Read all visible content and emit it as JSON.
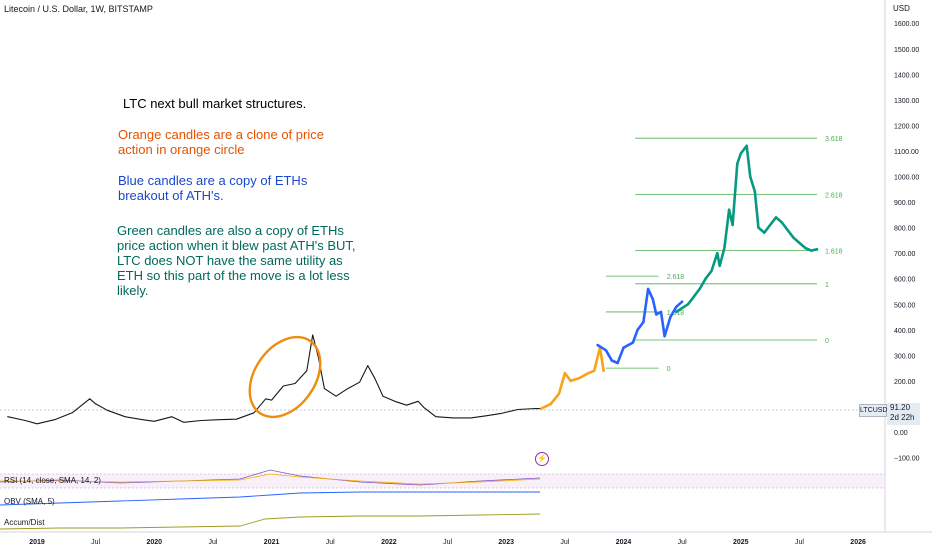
{
  "header": {
    "symbol_title": "Litecoin / U.S. Dollar, 1W, BITSTAMP",
    "currency": "USD"
  },
  "annotations": {
    "title": "LTC next bull market structures.",
    "orange": "Orange candles are a clone of price action in orange circle",
    "blue": "Blue candles are a copy of ETHs breakout of ATH's.",
    "green": "Green candles are also a copy of ETHs price action when it blew past ATH's BUT, LTC does NOT have the same utility as ETH so this part of the move is a lot less likely."
  },
  "price_axis": {
    "ticks": [
      1600,
      1500,
      1400,
      1300,
      1200,
      1100,
      1000,
      900,
      800,
      700,
      600,
      500,
      400,
      300,
      200,
      100,
      0,
      -100
    ],
    "tick_labels": [
      "1600.00",
      "1500.00",
      "1400.00",
      "1300.00",
      "1200.00",
      "1100.00",
      "1000.00",
      "900.00",
      "800.00",
      "700.00",
      "600.00",
      "500.00",
      "400.00",
      "300.00",
      "200.00",
      "100.00",
      "0.00",
      "−100.00"
    ]
  },
  "time_axis": {
    "labels": [
      {
        "text": "2019",
        "t": 2019.0
      },
      {
        "text": "Jul",
        "t": 2019.5
      },
      {
        "text": "2020",
        "t": 2020.0
      },
      {
        "text": "Jul",
        "t": 2020.5
      },
      {
        "text": "2021",
        "t": 2021.0
      },
      {
        "text": "Jul",
        "t": 2021.5
      },
      {
        "text": "2022",
        "t": 2022.0
      },
      {
        "text": "Jul",
        "t": 2022.5
      },
      {
        "text": "2023",
        "t": 2023.0
      },
      {
        "text": "Jul",
        "t": 2023.5
      },
      {
        "text": "2024",
        "t": 2024.0
      },
      {
        "text": "Jul",
        "t": 2024.5
      },
      {
        "text": "2025",
        "t": 2025.0
      },
      {
        "text": "Jul",
        "t": 2025.5
      },
      {
        "text": "2026",
        "t": 2026.0
      }
    ]
  },
  "badges": {
    "symbol": "LTCUSD",
    "last_price": "91.20",
    "countdown": "2d 22h"
  },
  "indicators": {
    "rsi_label": "RSI (14, close, SMA, 14, 2)",
    "obv_label": "OBV (SMA, 5)",
    "accum_label": "Accum/Dist"
  },
  "colors": {
    "historical": "#131722",
    "orange": "#f7a21b",
    "blue": "#2962ff",
    "green": "#089981",
    "fib": "#4caf50",
    "circle": "#ef8c0e"
  },
  "chart_data": {
    "type": "line",
    "title": "Litecoin / U.S. Dollar, 1W, BITSTAMP",
    "xlabel": "",
    "ylabel": "USD",
    "ylim": [
      -130,
      1650
    ],
    "series": [
      {
        "name": "",
        "color_key": "historical",
        "points": [
          [
            2018.75,
            60
          ],
          [
            2018.9,
            45
          ],
          [
            2019.0,
            32
          ],
          [
            2019.15,
            48
          ],
          [
            2019.3,
            75
          ],
          [
            2019.45,
            130
          ],
          [
            2019.5,
            110
          ],
          [
            2019.6,
            85
          ],
          [
            2019.75,
            60
          ],
          [
            2019.9,
            48
          ],
          [
            2020.0,
            42
          ],
          [
            2020.15,
            60
          ],
          [
            2020.25,
            38
          ],
          [
            2020.4,
            45
          ],
          [
            2020.55,
            48
          ],
          [
            2020.7,
            50
          ],
          [
            2020.85,
            75
          ],
          [
            2020.95,
            130
          ],
          [
            2021.0,
            125
          ],
          [
            2021.1,
            180
          ],
          [
            2021.2,
            190
          ],
          [
            2021.3,
            240
          ],
          [
            2021.35,
            380
          ],
          [
            2021.4,
            290
          ],
          [
            2021.45,
            170
          ],
          [
            2021.55,
            140
          ],
          [
            2021.65,
            170
          ],
          [
            2021.75,
            195
          ],
          [
            2021.82,
            260
          ],
          [
            2021.88,
            210
          ],
          [
            2021.95,
            140
          ],
          [
            2022.05,
            120
          ],
          [
            2022.15,
            105
          ],
          [
            2022.25,
            120
          ],
          [
            2022.3,
            95
          ],
          [
            2022.4,
            60
          ],
          [
            2022.55,
            55
          ],
          [
            2022.7,
            55
          ],
          [
            2022.85,
            65
          ],
          [
            2022.95,
            72
          ],
          [
            2023.1,
            88
          ],
          [
            2023.25,
            92
          ],
          [
            2023.3,
            91
          ]
        ]
      },
      {
        "name": "",
        "color_key": "orange",
        "points": [
          [
            2023.3,
            92
          ],
          [
            2023.38,
            110
          ],
          [
            2023.45,
            150
          ],
          [
            2023.5,
            230
          ],
          [
            2023.55,
            200
          ],
          [
            2023.62,
            210
          ],
          [
            2023.7,
            230
          ],
          [
            2023.75,
            240
          ],
          [
            2023.8,
            330
          ],
          [
            2023.83,
            240
          ]
        ]
      },
      {
        "name": "",
        "color_key": "blue",
        "points": [
          [
            2023.78,
            340
          ],
          [
            2023.85,
            320
          ],
          [
            2023.9,
            280
          ],
          [
            2023.95,
            270
          ],
          [
            2024.0,
            330
          ],
          [
            2024.08,
            350
          ],
          [
            2024.12,
            400
          ],
          [
            2024.17,
            430
          ],
          [
            2024.21,
            560
          ],
          [
            2024.25,
            520
          ],
          [
            2024.28,
            460
          ],
          [
            2024.32,
            470
          ],
          [
            2024.35,
            375
          ],
          [
            2024.4,
            450
          ],
          [
            2024.45,
            490
          ],
          [
            2024.5,
            510
          ]
        ]
      },
      {
        "name": "",
        "color_key": "green",
        "points": [
          [
            2024.45,
            470
          ],
          [
            2024.55,
            500
          ],
          [
            2024.6,
            530
          ],
          [
            2024.65,
            560
          ],
          [
            2024.7,
            600
          ],
          [
            2024.75,
            630
          ],
          [
            2024.8,
            700
          ],
          [
            2024.82,
            650
          ],
          [
            2024.86,
            720
          ],
          [
            2024.9,
            870
          ],
          [
            2024.93,
            810
          ],
          [
            2024.97,
            1050
          ],
          [
            2025.0,
            1090
          ],
          [
            2025.05,
            1120
          ],
          [
            2025.08,
            1000
          ],
          [
            2025.12,
            940
          ],
          [
            2025.15,
            800
          ],
          [
            2025.2,
            780
          ],
          [
            2025.25,
            810
          ],
          [
            2025.3,
            840
          ],
          [
            2025.35,
            820
          ],
          [
            2025.4,
            790
          ],
          [
            2025.45,
            760
          ],
          [
            2025.5,
            740
          ],
          [
            2025.55,
            720
          ],
          [
            2025.6,
            710
          ],
          [
            2025.65,
            715
          ]
        ]
      }
    ],
    "fibonacci": [
      {
        "label": "0",
        "value": 250,
        "t0": 2023.85,
        "t1": 2024.3
      },
      {
        "label": "1.618",
        "value": 470,
        "t0": 2023.85,
        "t1": 2024.3
      },
      {
        "label": "2.618",
        "value": 610,
        "t0": 2023.85,
        "t1": 2024.3
      },
      {
        "label": "0",
        "value": 360,
        "t0": 2024.1,
        "t1": 2025.65
      },
      {
        "label": "1",
        "value": 580,
        "t0": 2024.1,
        "t1": 2025.65
      },
      {
        "label": "1.618",
        "value": 710,
        "t0": 2024.1,
        "t1": 2025.65
      },
      {
        "label": "2.618",
        "value": 930,
        "t0": 2024.1,
        "t1": 2025.65
      },
      {
        "label": "3.618",
        "value": 1150,
        "t0": 2024.1,
        "t1": 2025.65
      }
    ]
  }
}
